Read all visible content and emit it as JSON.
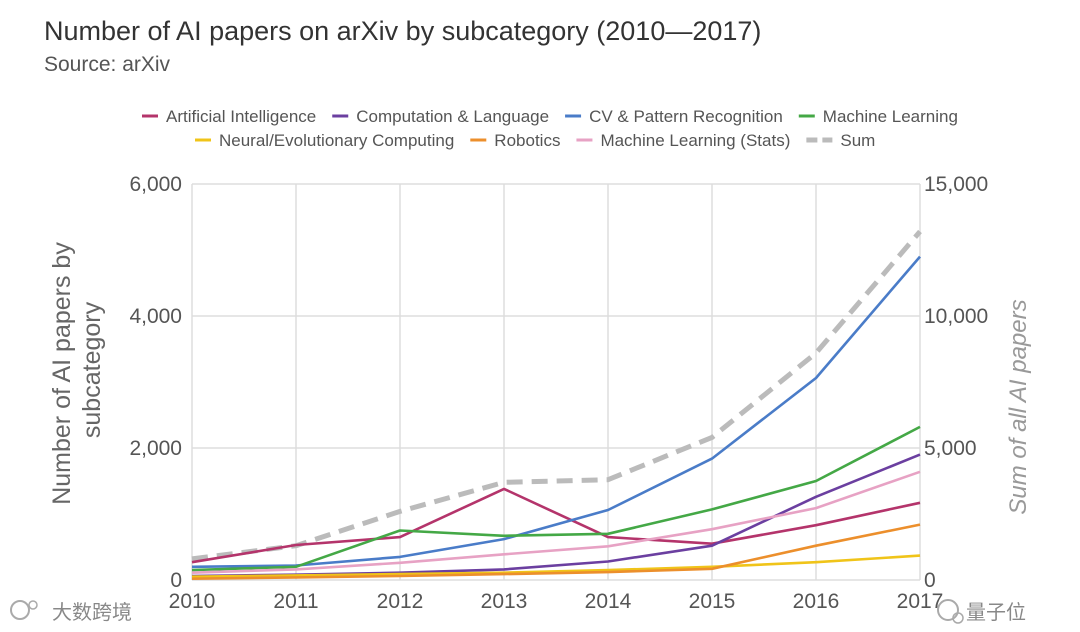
{
  "chart_data": {
    "type": "line",
    "title": "Number of AI papers on arXiv by subcategory (2010—2017)",
    "subtitle": "Source: arXiv",
    "x": [
      "2010",
      "2011",
      "2012",
      "2013",
      "2014",
      "2015",
      "2016",
      "2017"
    ],
    "ylabel": "Number of AI papers by subcategory",
    "ylabel_lines": [
      "Number of AI papers by",
      "subcategory"
    ],
    "y2label": "Sum of all AI papers",
    "ylim": [
      0,
      6000
    ],
    "y2lim": [
      0,
      15000
    ],
    "yticks": [
      "0",
      "2,000",
      "4,000",
      "6,000"
    ],
    "y2ticks": [
      "0",
      "5,000",
      "10,000",
      "15,000"
    ],
    "legend_position": "top",
    "series": [
      {
        "name": "Artificial Intelligence",
        "color": "#b4346b",
        "axis": "left",
        "values": [
          270,
          530,
          650,
          1380,
          650,
          550,
          830,
          1170
        ]
      },
      {
        "name": "Computation & Language",
        "color": "#6b3fa0",
        "axis": "left",
        "values": [
          60,
          80,
          110,
          160,
          280,
          520,
          1260,
          1900
        ]
      },
      {
        "name": "CV & Pattern Recognition",
        "color": "#4a7cc8",
        "axis": "left",
        "values": [
          200,
          220,
          350,
          620,
          1060,
          1840,
          3060,
          4900
        ]
      },
      {
        "name": "Machine Learning",
        "color": "#44a846",
        "axis": "left",
        "values": [
          150,
          200,
          750,
          670,
          700,
          1070,
          1500,
          2320
        ]
      },
      {
        "name": "Neural/Evolutionary Computing",
        "color": "#f0c419",
        "axis": "left",
        "values": [
          50,
          70,
          90,
          110,
          150,
          200,
          270,
          370
        ]
      },
      {
        "name": "Robotics",
        "color": "#ec8f2c",
        "axis": "left",
        "values": [
          20,
          40,
          60,
          90,
          120,
          170,
          520,
          840
        ]
      },
      {
        "name": "Machine Learning (Stats)",
        "color": "#e7a2c4",
        "axis": "left",
        "values": [
          110,
          160,
          260,
          390,
          510,
          770,
          1090,
          1640
        ]
      },
      {
        "name": "Sum",
        "color": "#bbbbbb",
        "axis": "right",
        "dashed": true,
        "values": [
          800,
          1300,
          2600,
          3700,
          3800,
          5400,
          8600,
          13200
        ]
      }
    ]
  },
  "watermark_left": "大数跨境",
  "watermark_right": "量子位"
}
